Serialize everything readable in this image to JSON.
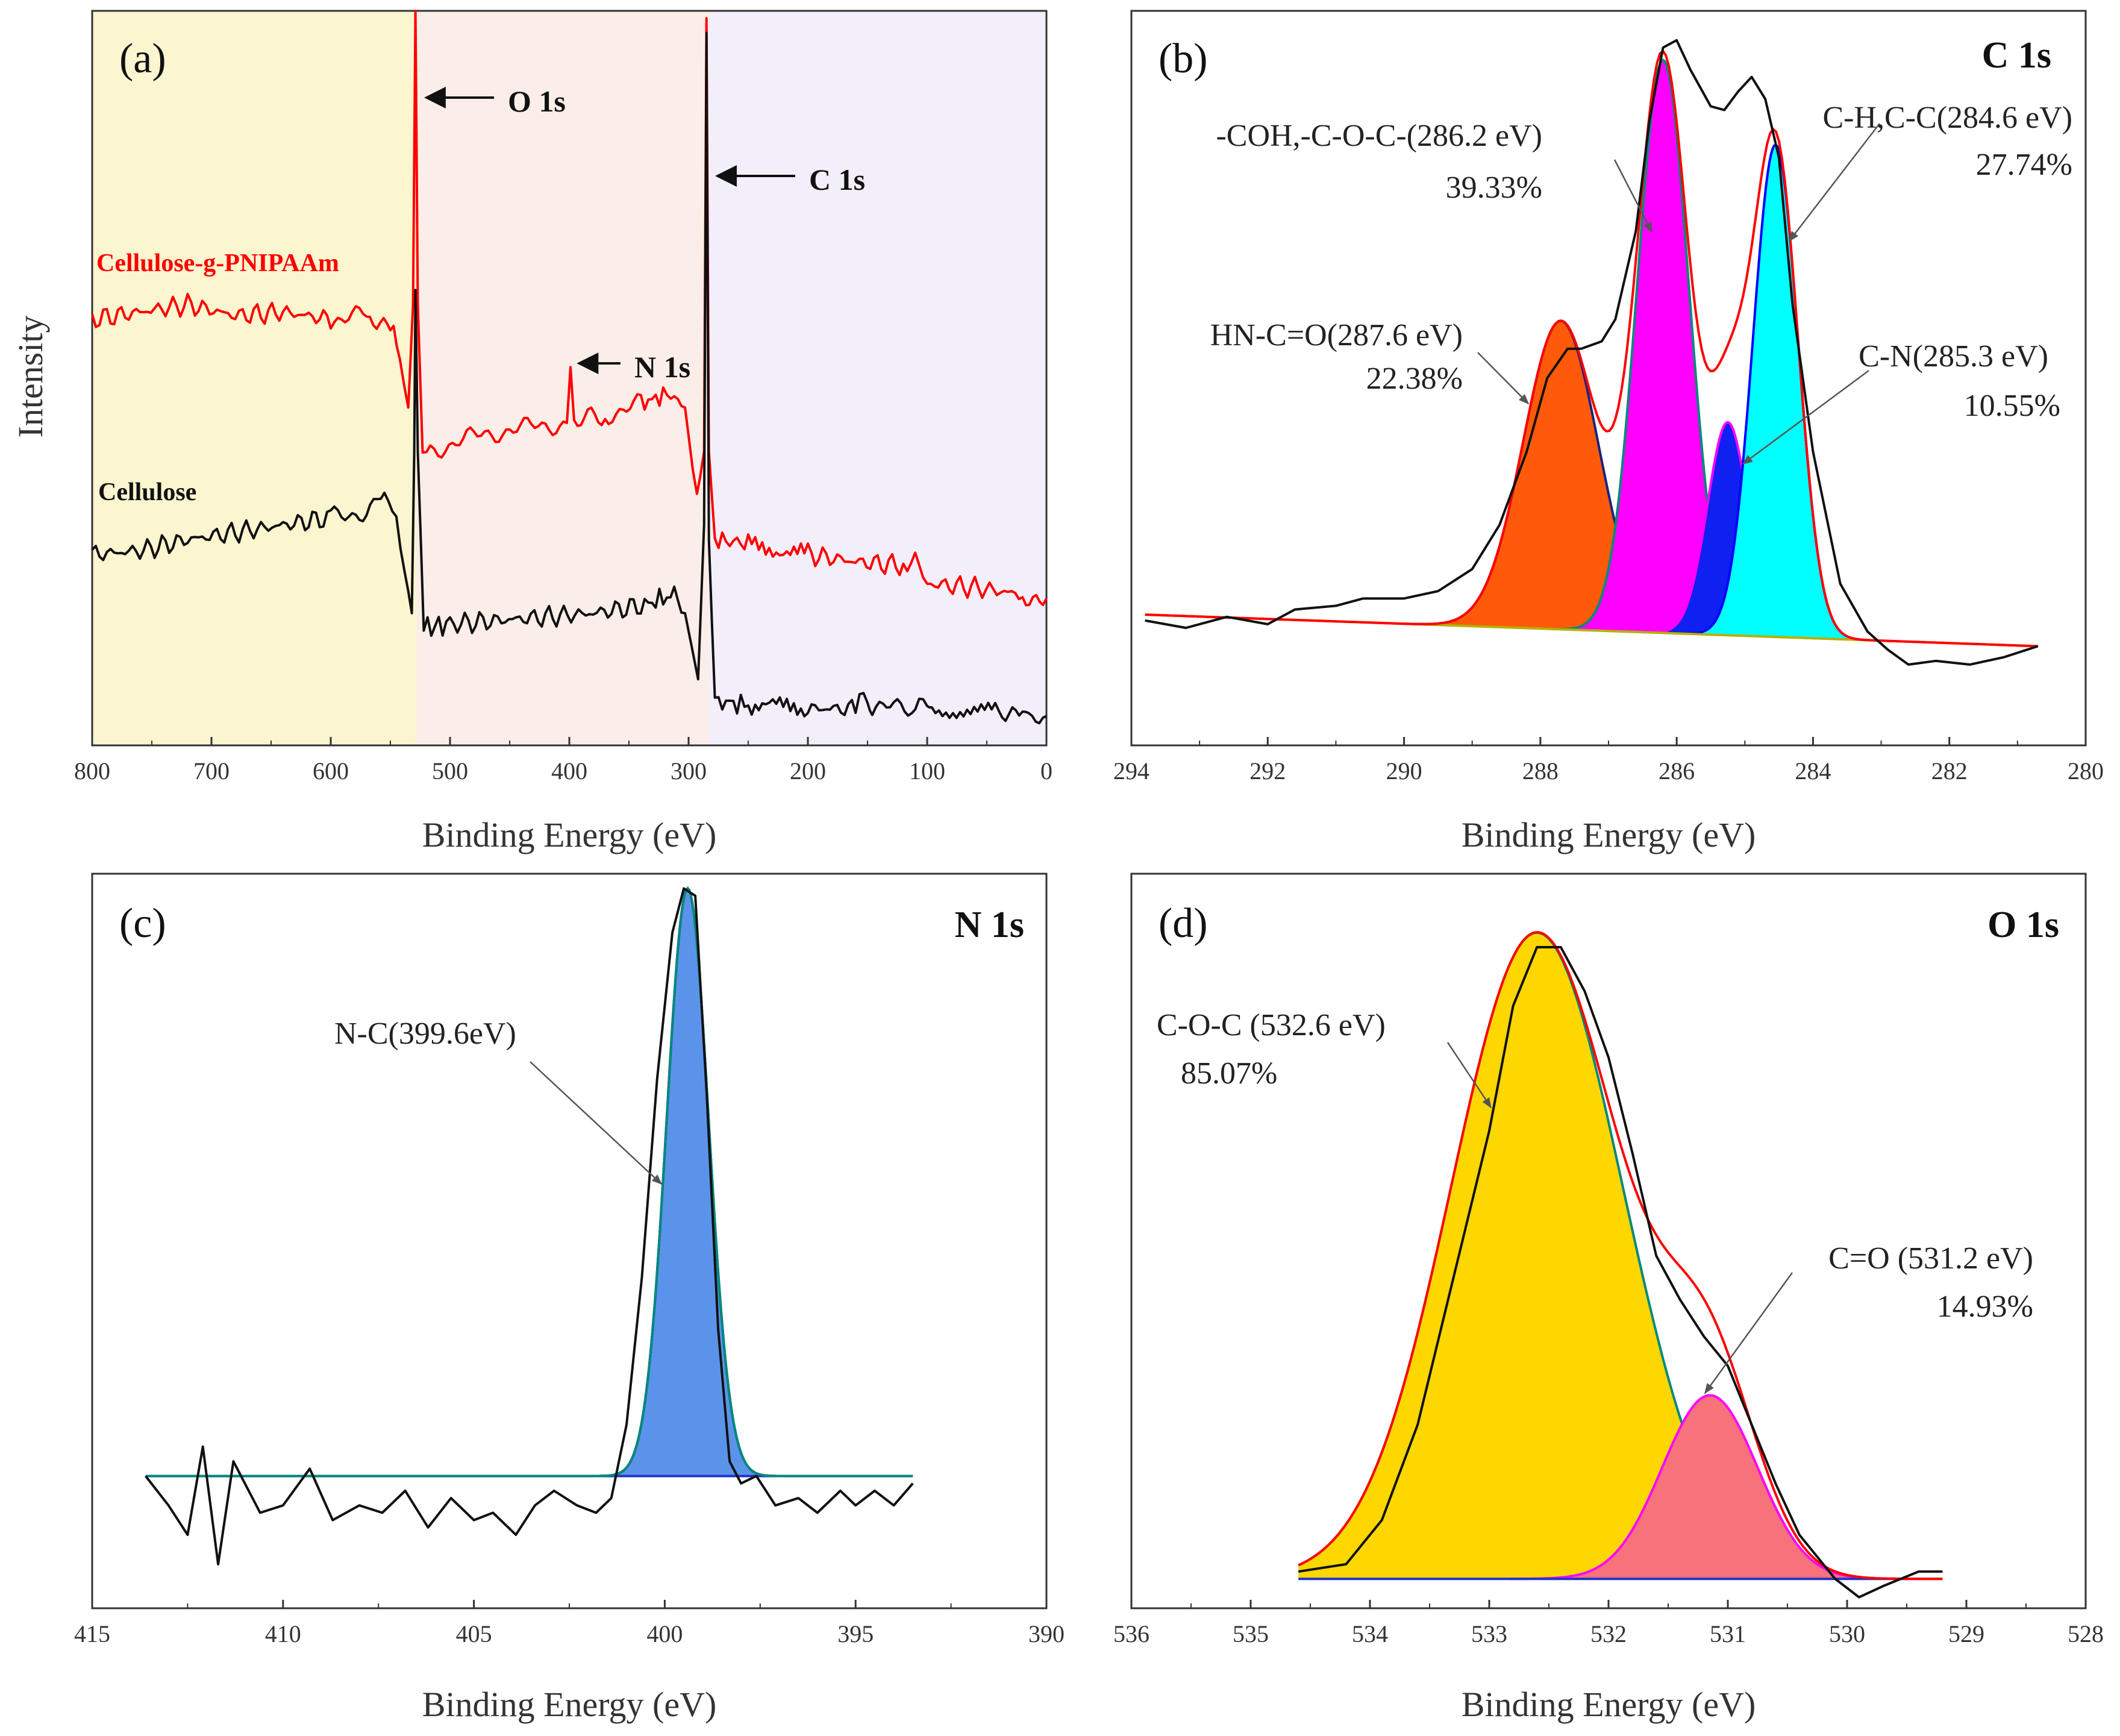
{
  "chart_data": [
    {
      "id": "a",
      "type": "line",
      "panel_label": "(a)",
      "title": "",
      "xlabel": "Binding Energy (eV)",
      "ylabel": "Intensity",
      "xlim": [
        800,
        0
      ],
      "ylim": [
        0,
        100
      ],
      "x_ticks": [
        800,
        700,
        600,
        500,
        400,
        300,
        200,
        100,
        0
      ],
      "grid": false,
      "background_regions": [
        {
          "x_from": 800,
          "x_to": 528,
          "color": "#fbf5d0"
        },
        {
          "x_from": 528,
          "x_to": 283,
          "color": "#fbeee8"
        },
        {
          "x_from": 283,
          "x_to": 0,
          "color": "#f3effa"
        }
      ],
      "series": [
        {
          "name": "Cellulose-g-PNIPAAm",
          "color": "#ff0000",
          "points": [
            [
              800,
              58
            ],
            [
              760,
              59
            ],
            [
              720,
              60
            ],
            [
              680,
              58.5
            ],
            [
              640,
              59
            ],
            [
              600,
              58
            ],
            [
              570,
              58.5
            ],
            [
              550,
              57
            ],
            [
              542,
              53
            ],
            [
              535,
              46
            ],
            [
              531,
              60
            ],
            [
              529,
              100
            ],
            [
              527,
              60
            ],
            [
              523,
              40
            ],
            [
              510,
              40.5
            ],
            [
              480,
              42
            ],
            [
              450,
              43
            ],
            [
              420,
              43.5
            ],
            [
              402,
              44
            ],
            [
              399,
              52
            ],
            [
              396,
              44.5
            ],
            [
              370,
              45
            ],
            [
              340,
              46.5
            ],
            [
              315,
              48
            ],
            [
              303,
              46
            ],
            [
              293,
              33
            ],
            [
              287,
              40
            ],
            [
              285,
              99
            ],
            [
              283,
              40
            ],
            [
              278,
              28
            ],
            [
              250,
              27.5
            ],
            [
              200,
              26
            ],
            [
              160,
              25
            ],
            [
              120,
              24.5
            ],
            [
              110,
              25.5
            ],
            [
              100,
              22
            ],
            [
              60,
              21.5
            ],
            [
              20,
              20.5
            ],
            [
              0,
              20
            ]
          ]
        },
        {
          "name": "Cellulose",
          "color": "#111111",
          "points": [
            [
              800,
              26
            ],
            [
              760,
              26.5
            ],
            [
              720,
              28
            ],
            [
              680,
              29
            ],
            [
              640,
              30
            ],
            [
              600,
              31
            ],
            [
              570,
              32
            ],
            [
              555,
              34
            ],
            [
              545,
              31
            ],
            [
              538,
              24
            ],
            [
              532,
              18
            ],
            [
              530,
              40
            ],
            [
              529,
              62
            ],
            [
              527,
              40
            ],
            [
              522,
              16
            ],
            [
              500,
              16.5
            ],
            [
              460,
              17
            ],
            [
              420,
              17.5
            ],
            [
              380,
              18
            ],
            [
              340,
              19
            ],
            [
              312,
              20.5
            ],
            [
              303,
              18
            ],
            [
              292,
              9
            ],
            [
              287,
              30
            ],
            [
              285,
              97
            ],
            [
              283,
              28
            ],
            [
              278,
              6
            ],
            [
              250,
              5.5
            ],
            [
              200,
              5
            ],
            [
              160,
              5
            ],
            [
              150,
              7
            ],
            [
              146,
              5
            ],
            [
              110,
              5
            ],
            [
              100,
              6.5
            ],
            [
              96,
              5
            ],
            [
              40,
              4.5
            ],
            [
              20,
              5.5
            ],
            [
              15,
              4.5
            ],
            [
              0,
              4
            ]
          ]
        }
      ],
      "annotations": [
        {
          "text": "O 1s",
          "arrow_to_x": 524,
          "arrow_to_y": 90
        },
        {
          "text": "C 1s",
          "arrow_to_x": 280,
          "arrow_to_y": 80
        },
        {
          "text": "N 1s",
          "arrow_to_x": 396,
          "arrow_to_y": 52
        }
      ]
    },
    {
      "id": "b",
      "type": "area",
      "panel_label": "(b)",
      "title": "C 1s",
      "xlabel": "Binding Energy (eV)",
      "ylabel": "",
      "xlim": [
        294,
        280
      ],
      "ylim": [
        0,
        100
      ],
      "x_ticks": [
        294,
        292,
        290,
        288,
        286,
        284,
        282,
        280
      ],
      "grid": false,
      "background_line": {
        "points": [
          [
            293.8,
            17.8
          ],
          [
            280.7,
            13.5
          ]
        ],
        "color": "#b8b000"
      },
      "peaks": [
        {
          "label": "HN-C=O(287.6 eV)",
          "percent": "22.38%",
          "center": 287.7,
          "height": 42,
          "sigma": 0.55,
          "color": "#ff5a0a",
          "edge": "#1a237e"
        },
        {
          "label": "-COH,-C-O-C-(286.2 eV)",
          "percent": "39.33%",
          "center": 286.2,
          "height": 78,
          "sigma": 0.38,
          "color": "#ff00ff",
          "edge": "#00897b"
        },
        {
          "label": "C-N(285.3 eV)",
          "percent": "10.55%",
          "center": 285.25,
          "height": 29,
          "sigma": 0.3,
          "color": "#1020f0",
          "edge": "#ff00ff"
        },
        {
          "label": "C-H,C-C(284.6 eV)",
          "percent": "27.74%",
          "center": 284.55,
          "height": 67,
          "sigma": 0.33,
          "color": "#00ffff",
          "edge": "#0000ff"
        }
      ],
      "fitted_envelope": {
        "color": "#ff0000"
      },
      "raw_data": {
        "color": "#111111",
        "points": [
          [
            293.8,
            17
          ],
          [
            293.2,
            16
          ],
          [
            292.6,
            17.5
          ],
          [
            292.0,
            16.5
          ],
          [
            291.6,
            18.5
          ],
          [
            291.0,
            19
          ],
          [
            290.6,
            20
          ],
          [
            290.0,
            20
          ],
          [
            289.5,
            21
          ],
          [
            289.0,
            24
          ],
          [
            288.6,
            30
          ],
          [
            288.2,
            40
          ],
          [
            287.9,
            50
          ],
          [
            287.6,
            54
          ],
          [
            287.4,
            54
          ],
          [
            287.1,
            55
          ],
          [
            286.9,
            58
          ],
          [
            286.6,
            70
          ],
          [
            286.4,
            85
          ],
          [
            286.2,
            95
          ],
          [
            286.0,
            96
          ],
          [
            285.8,
            92
          ],
          [
            285.5,
            87
          ],
          [
            285.3,
            86.5
          ],
          [
            285.1,
            89
          ],
          [
            284.9,
            91
          ],
          [
            284.7,
            88
          ],
          [
            284.5,
            80
          ],
          [
            284.3,
            60
          ],
          [
            284.0,
            40
          ],
          [
            283.6,
            22
          ],
          [
            283.2,
            15.5
          ],
          [
            282.9,
            13
          ],
          [
            282.6,
            11
          ],
          [
            282.2,
            11.5
          ],
          [
            281.7,
            11
          ],
          [
            281.2,
            12
          ],
          [
            280.7,
            13.5
          ]
        ]
      }
    },
    {
      "id": "c",
      "type": "area",
      "panel_label": "(c)",
      "title": "N 1s",
      "xlabel": "Binding Energy (eV)",
      "ylabel": "",
      "xlim": [
        415,
        390
      ],
      "ylim": [
        0,
        100
      ],
      "x_ticks": [
        415,
        410,
        405,
        400,
        395,
        390
      ],
      "grid": false,
      "baseline_level": 18,
      "peaks": [
        {
          "label": "N-C(399.6eV)",
          "percent": "",
          "center": 399.4,
          "height": 80,
          "sigma": 0.55,
          "color": "#5b93ea",
          "edge": "#1a237e"
        }
      ],
      "fitted_envelope": {
        "color": "#00897b"
      },
      "raw_data": {
        "color": "#111111",
        "points": [
          [
            413.6,
            18
          ],
          [
            413.0,
            14
          ],
          [
            412.5,
            10
          ],
          [
            412.1,
            22
          ],
          [
            411.7,
            6
          ],
          [
            411.3,
            20
          ],
          [
            410.6,
            13
          ],
          [
            410.0,
            14
          ],
          [
            409.3,
            19
          ],
          [
            408.7,
            12
          ],
          [
            408.0,
            14
          ],
          [
            407.4,
            13
          ],
          [
            406.8,
            16
          ],
          [
            406.2,
            11
          ],
          [
            405.6,
            15
          ],
          [
            405.0,
            12
          ],
          [
            404.5,
            13
          ],
          [
            403.9,
            10
          ],
          [
            403.4,
            14
          ],
          [
            402.9,
            16
          ],
          [
            402.3,
            14
          ],
          [
            401.8,
            13
          ],
          [
            401.4,
            15
          ],
          [
            401.0,
            25
          ],
          [
            400.6,
            45
          ],
          [
            400.2,
            72
          ],
          [
            399.8,
            92
          ],
          [
            399.5,
            98
          ],
          [
            399.2,
            97
          ],
          [
            398.9,
            70
          ],
          [
            398.6,
            38
          ],
          [
            398.3,
            20
          ],
          [
            398.0,
            17
          ],
          [
            397.6,
            18
          ],
          [
            397.1,
            14
          ],
          [
            396.5,
            15
          ],
          [
            396.0,
            13
          ],
          [
            395.4,
            16
          ],
          [
            395.0,
            14
          ],
          [
            394.5,
            16
          ],
          [
            394.0,
            14
          ],
          [
            393.5,
            17
          ]
        ]
      }
    },
    {
      "id": "d",
      "type": "area",
      "panel_label": "(d)",
      "title": "O 1s",
      "xlabel": "Binding Energy (eV)",
      "ylabel": "",
      "xlim": [
        536,
        528
      ],
      "ylim": [
        0,
        100
      ],
      "x_ticks": [
        536,
        535,
        534,
        533,
        532,
        531,
        530,
        529,
        528
      ],
      "grid": false,
      "baseline_level": 4,
      "peaks": [
        {
          "label": "C-O-C (532.6 eV)",
          "percent": "85.07%",
          "center": 532.6,
          "height": 88,
          "sigma": 0.72,
          "color": "#ffd700",
          "edge": "#00897b"
        },
        {
          "label": "C=O (531.2 eV)",
          "percent": "14.93%",
          "center": 531.15,
          "height": 25,
          "sigma": 0.4,
          "color": "#f7727a",
          "edge": "#ff00ff"
        }
      ],
      "fitted_envelope": {
        "color": "#ff0000"
      },
      "raw_data": {
        "color": "#111111",
        "points": [
          [
            534.6,
            5
          ],
          [
            534.2,
            6
          ],
          [
            533.9,
            12
          ],
          [
            533.6,
            25
          ],
          [
            533.3,
            45
          ],
          [
            533.0,
            65
          ],
          [
            532.8,
            82
          ],
          [
            532.6,
            90
          ],
          [
            532.4,
            90
          ],
          [
            532.2,
            84
          ],
          [
            532.0,
            75
          ],
          [
            531.8,
            62
          ],
          [
            531.6,
            48
          ],
          [
            531.4,
            42
          ],
          [
            531.2,
            37
          ],
          [
            531.0,
            33
          ],
          [
            530.8,
            25
          ],
          [
            530.6,
            17
          ],
          [
            530.4,
            10
          ],
          [
            530.1,
            4
          ],
          [
            529.9,
            1.5
          ],
          [
            529.7,
            3
          ],
          [
            529.4,
            5
          ],
          [
            529.2,
            5
          ]
        ]
      }
    }
  ]
}
